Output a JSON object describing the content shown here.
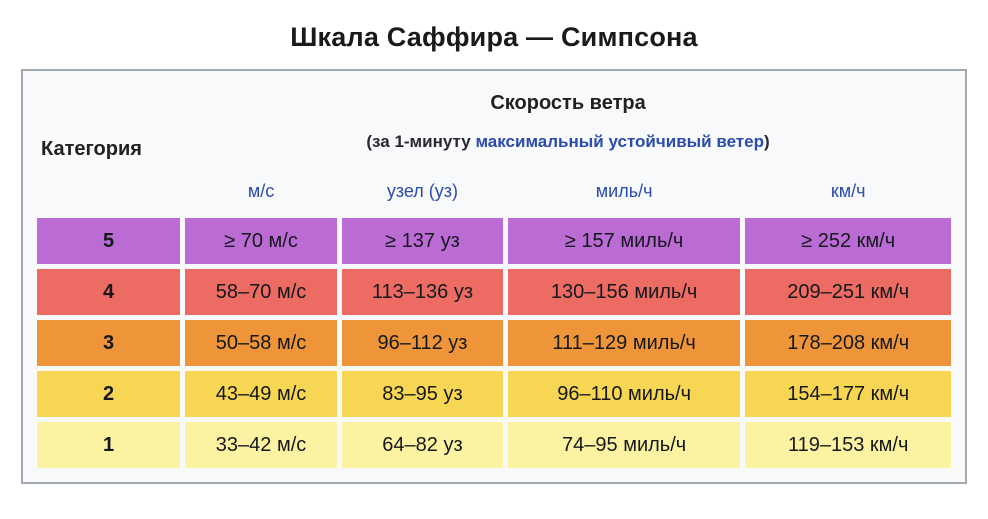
{
  "title": "Шкала Саффира — Симпсона",
  "colors": {
    "link": "#2b4bad",
    "border": "#a2a9b1",
    "table_bg": "#f8f9fa",
    "text": "#1d1d1f"
  },
  "table": {
    "category_header": "Категория",
    "speed_header": "Скорость ветра",
    "speed_subheader_prefix": "(за 1-минуту ",
    "speed_subheader_link": "максимальный устойчивый ветер",
    "speed_subheader_suffix": ")",
    "unit_headers": {
      "ms": "м/с",
      "knots": "узел (уз)",
      "mph": "миль/ч",
      "kmh": "км/ч"
    },
    "rows": [
      {
        "category": "5",
        "color": "#ba6bd4",
        "ms": "≥ 70 м/с",
        "knots": "≥ 137 уз",
        "mph": "≥ 157 миль/ч",
        "kmh": "≥ 252 км/ч"
      },
      {
        "category": "4",
        "color": "#ec6b63",
        "ms": "58–70 м/с",
        "knots": "113–136 уз",
        "mph": "130–156 миль/ч",
        "kmh": "209–251 км/ч"
      },
      {
        "category": "3",
        "color": "#ee9539",
        "ms": "50–58 м/с",
        "knots": "96–112 уз",
        "mph": "111–129 миль/ч",
        "kmh": "178–208 км/ч"
      },
      {
        "category": "2",
        "color": "#f6d653",
        "ms": "43–49 м/с",
        "knots": "83–95 уз",
        "mph": "96–110 миль/ч",
        "kmh": "154–177 км/ч"
      },
      {
        "category": "1",
        "color": "#fcf3a2",
        "ms": "33–42 м/с",
        "knots": "64–82 уз",
        "mph": "74–95 миль/ч",
        "kmh": "119–153 км/ч"
      }
    ]
  }
}
